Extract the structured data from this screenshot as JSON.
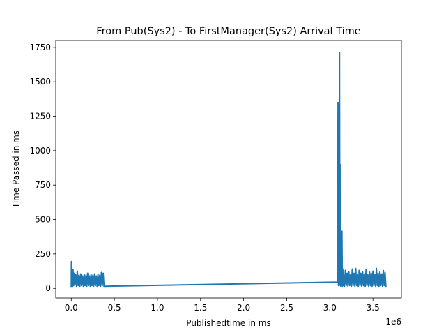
{
  "chart_data": {
    "type": "line",
    "title": "From Pub(Sys2) - To FirstManager(Sys2) Arrival Time",
    "xlabel": "Publishedtime in ms",
    "ylabel": "Time Passed in ms",
    "x_offset_label": "1e6",
    "xlim": [
      -0.18,
      3.83
    ],
    "ylim": [
      -70,
      1800
    ],
    "x_ticks": [
      0.0,
      0.5,
      1.0,
      1.5,
      2.0,
      2.5,
      3.0,
      3.5
    ],
    "x_tick_labels": [
      "0.0",
      "0.5",
      "1.0",
      "1.5",
      "2.0",
      "2.5",
      "3.0",
      "3.5"
    ],
    "y_ticks": [
      0,
      250,
      500,
      750,
      1000,
      1250,
      1500,
      1750
    ],
    "y_tick_labels": [
      "0",
      "250",
      "500",
      "750",
      "1000",
      "1250",
      "1500",
      "1750"
    ],
    "grid": false,
    "line_color": "#1f77b4",
    "series": [
      {
        "x": [
          0.0,
          0.002,
          0.004,
          0.006,
          0.008,
          0.012,
          0.016,
          0.02,
          0.026,
          0.032,
          0.04,
          0.05,
          0.06,
          0.07,
          0.08,
          0.09,
          0.1,
          0.11,
          0.12,
          0.13,
          0.14,
          0.15,
          0.16,
          0.17,
          0.18,
          0.19,
          0.2,
          0.21,
          0.22,
          0.23,
          0.24,
          0.25,
          0.26,
          0.27,
          0.28,
          0.29,
          0.3,
          0.31,
          0.32,
          0.33,
          0.34,
          0.35,
          0.36,
          0.37,
          0.38,
          0.385,
          3.09,
          3.095,
          3.1,
          3.104,
          3.108,
          3.112,
          3.116,
          3.118,
          3.12,
          3.124,
          3.128,
          3.132,
          3.136,
          3.14,
          3.145,
          3.15,
          3.155,
          3.16,
          3.17,
          3.18,
          3.19,
          3.2,
          3.21,
          3.22,
          3.23,
          3.24,
          3.25,
          3.26,
          3.27,
          3.28,
          3.29,
          3.3,
          3.31,
          3.32,
          3.33,
          3.34,
          3.35,
          3.36,
          3.37,
          3.38,
          3.39,
          3.4,
          3.41,
          3.42,
          3.43,
          3.44,
          3.45,
          3.46,
          3.47,
          3.48,
          3.49,
          3.5,
          3.51,
          3.52,
          3.53,
          3.54,
          3.55,
          3.56,
          3.57,
          3.58,
          3.59,
          3.6,
          3.61,
          3.62,
          3.63,
          3.64,
          3.65
        ],
        "y": [
          10,
          195,
          20,
          170,
          30,
          120,
          15,
          135,
          20,
          110,
          25,
          100,
          15,
          125,
          20,
          95,
          15,
          105,
          20,
          90,
          15,
          100,
          20,
          95,
          15,
          110,
          20,
          90,
          15,
          100,
          20,
          95,
          15,
          105,
          20,
          90,
          15,
          100,
          20,
          95,
          15,
          115,
          20,
          110,
          15,
          15,
          45,
          1350,
          20,
          1100,
          30,
          1710,
          25,
          900,
          20,
          200,
          15,
          120,
          20,
          415,
          15,
          140,
          20,
          100,
          15,
          130,
          20,
          110,
          15,
          120,
          20,
          100,
          15,
          140,
          20,
          110,
          15,
          145,
          20,
          100,
          15,
          130,
          20,
          110,
          15,
          120,
          20,
          105,
          15,
          135,
          20,
          100,
          15,
          120,
          20,
          110,
          15,
          125,
          20,
          100,
          15,
          145,
          20,
          110,
          15,
          120,
          20,
          105,
          15,
          130,
          20,
          115,
          10
        ]
      }
    ]
  }
}
